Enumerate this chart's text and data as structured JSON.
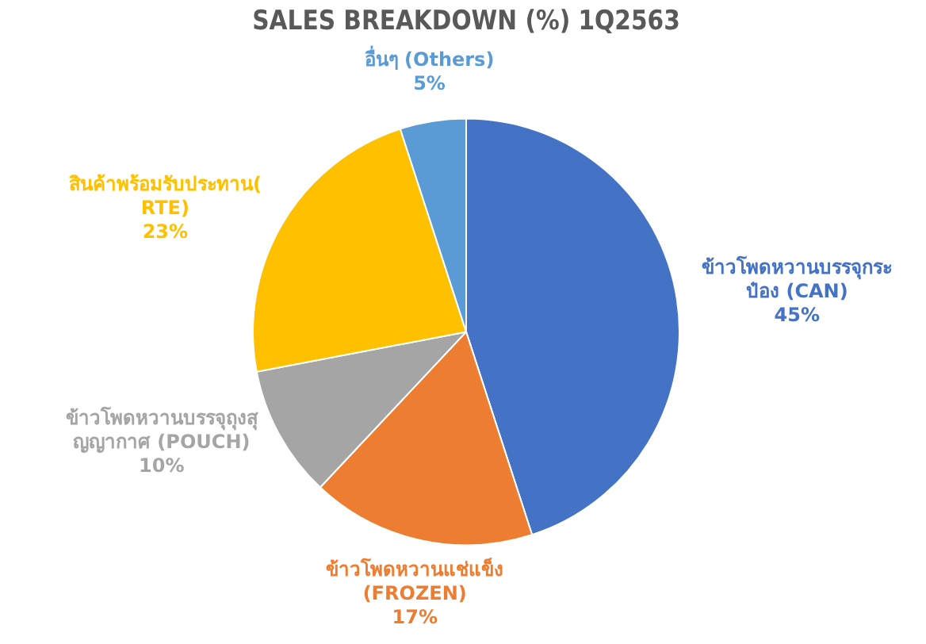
{
  "chart_data": {
    "type": "pie",
    "title": "SALES BREAKDOWN (%) 1Q2563",
    "categories": [
      "ข้าวโพดหวานบรรจุกระป๋อง (CAN)",
      "ข้าวโพดหวานแช่แข็ง (FROZEN)",
      "ข้าวโพดหวานบรรจุถุงสุญญากาศ (POUCH)",
      "สินค้าพร้อมรับประทาน(RTE)",
      "อื่นๆ (Others)"
    ],
    "values": [
      45,
      17,
      10,
      23,
      5
    ],
    "value_labels": [
      "45%",
      "17%",
      "10%",
      "23%",
      "5%"
    ],
    "colors": [
      "#4472c4",
      "#ed7d31",
      "#a5a5a5",
      "#ffc000",
      "#5b9bd5"
    ],
    "legend": false
  }
}
